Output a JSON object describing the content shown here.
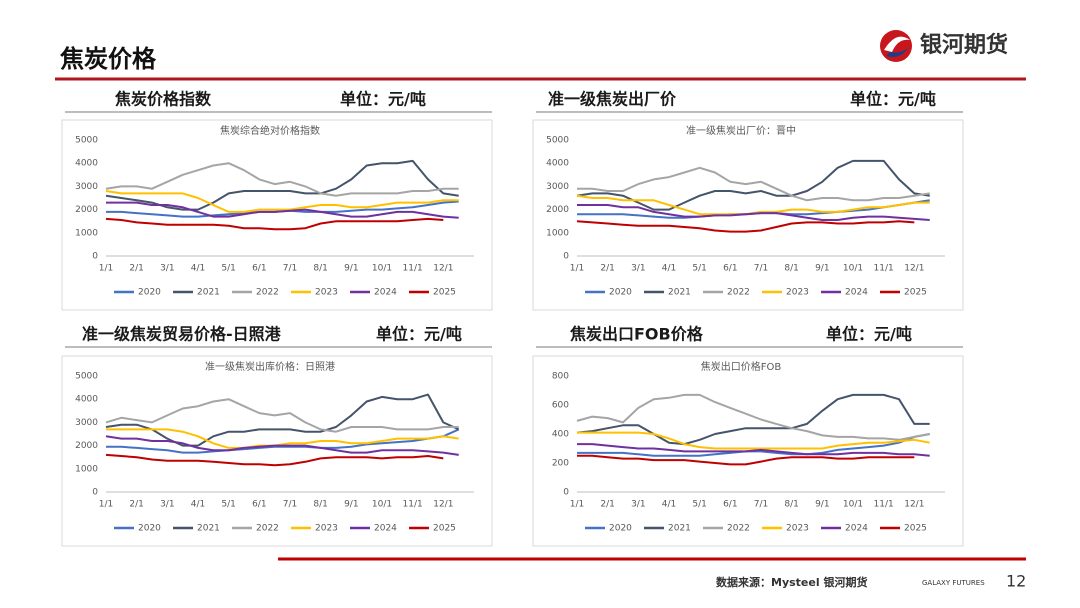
{
  "header": {
    "title": "焦炭价格",
    "logo": "银河期货"
  },
  "panels": [
    {
      "title": "焦炭价格指数",
      "unit": "单位：元/吨"
    },
    {
      "title": "准一级焦炭出厂价",
      "unit": "单位：元/吨"
    },
    {
      "title": "准一级焦炭贸易价格-日照港",
      "unit": "单位：元/吨"
    },
    {
      "title": "焦炭出口FOB价格",
      "unit": "单位：元/吨"
    }
  ],
  "chart_data": [
    {
      "type": "line",
      "title": "焦炭综合绝对价格指数",
      "grid": false,
      "categories": [
        "1/1",
        null,
        "2/1",
        null,
        "3/1",
        null,
        "4/1",
        null,
        "5/1",
        null,
        "6/1",
        null,
        "7/1",
        null,
        "8/1",
        null,
        "9/1",
        null,
        "10/1",
        null,
        "11/1",
        null,
        "12/1",
        null
      ],
      "ylim": [
        0,
        5000
      ],
      "yticks": [
        0,
        1000,
        2000,
        3000,
        4000,
        5000
      ],
      "series": [
        {
          "name": "2020",
          "color": "#4472c4",
          "values": [
            1900,
            1900,
            1850,
            1800,
            1750,
            1700,
            1700,
            1750,
            1800,
            1850,
            1900,
            1900,
            1950,
            1900,
            1900,
            1900,
            1950,
            2000,
            2000,
            2050,
            2100,
            2200,
            2300,
            2350
          ]
        },
        {
          "name": "2021",
          "color": "#44546a",
          "values": [
            2600,
            2500,
            2400,
            2300,
            2100,
            2000,
            2000,
            2300,
            2700,
            2800,
            2800,
            2800,
            2800,
            2700,
            2700,
            2900,
            3300,
            3900,
            4000,
            4000,
            4100,
            3300,
            2700,
            2600
          ]
        },
        {
          "name": "2022",
          "color": "#a5a5a5",
          "values": [
            2900,
            3000,
            3000,
            2900,
            3200,
            3500,
            3700,
            3900,
            4000,
            3700,
            3300,
            3100,
            3200,
            3000,
            2700,
            2600,
            2700,
            2700,
            2700,
            2700,
            2800,
            2800,
            2900,
            2900
          ]
        },
        {
          "name": "2023",
          "color": "#ffc000",
          "values": [
            2800,
            2700,
            2700,
            2700,
            2700,
            2700,
            2500,
            2200,
            1900,
            1900,
            2000,
            2000,
            2000,
            2100,
            2200,
            2200,
            2100,
            2100,
            2200,
            2300,
            2300,
            2300,
            2400,
            2400
          ]
        },
        {
          "name": "2024",
          "color": "#7030a0",
          "values": [
            2300,
            2300,
            2300,
            2200,
            2200,
            2100,
            1900,
            1700,
            1700,
            1800,
            1900,
            1900,
            1950,
            2000,
            1900,
            1800,
            1700,
            1700,
            1800,
            1900,
            1900,
            1800,
            1700,
            1650
          ]
        },
        {
          "name": "2025",
          "color": "#c00000",
          "values": [
            1600,
            1550,
            1450,
            1400,
            1350,
            1350,
            1350,
            1350,
            1300,
            1200,
            1200,
            1150,
            1150,
            1200,
            1400,
            1500,
            1500,
            1500,
            1500,
            1500,
            1550,
            1600,
            1550,
            null
          ]
        }
      ]
    },
    {
      "type": "line",
      "title": "准一级焦炭出厂价：晋中",
      "grid": false,
      "categories": [
        "1/1",
        null,
        "2/1",
        null,
        "3/1",
        null,
        "4/1",
        null,
        "5/1",
        null,
        "6/1",
        null,
        "7/1",
        null,
        "8/1",
        null,
        "9/1",
        null,
        "10/1",
        null,
        "11/1",
        null,
        "12/1",
        null
      ],
      "ylim": [
        0,
        5000
      ],
      "yticks": [
        0,
        1000,
        2000,
        3000,
        4000,
        5000
      ],
      "series": [
        {
          "name": "2020",
          "color": "#4472c4",
          "values": [
            1800,
            1800,
            1800,
            1800,
            1750,
            1700,
            1650,
            1650,
            1700,
            1750,
            1800,
            1800,
            1850,
            1850,
            1800,
            1800,
            1850,
            1900,
            1950,
            2000,
            2100,
            2200,
            2300,
            2400
          ]
        },
        {
          "name": "2021",
          "color": "#44546a",
          "values": [
            2600,
            2700,
            2700,
            2600,
            2300,
            2000,
            2000,
            2300,
            2600,
            2800,
            2800,
            2700,
            2800,
            2600,
            2600,
            2800,
            3200,
            3800,
            4100,
            4100,
            4100,
            3300,
            2700,
            2600
          ]
        },
        {
          "name": "2022",
          "color": "#a5a5a5",
          "values": [
            2900,
            2900,
            2800,
            2800,
            3100,
            3300,
            3400,
            3600,
            3800,
            3600,
            3200,
            3100,
            3200,
            2900,
            2600,
            2400,
            2500,
            2500,
            2400,
            2400,
            2500,
            2500,
            2600,
            2700
          ]
        },
        {
          "name": "2023",
          "color": "#ffc000",
          "values": [
            2600,
            2500,
            2500,
            2400,
            2400,
            2400,
            2200,
            2000,
            1800,
            1800,
            1800,
            1800,
            1900,
            1900,
            2000,
            2000,
            1900,
            1900,
            2000,
            2100,
            2100,
            2200,
            2300,
            2300
          ]
        },
        {
          "name": "2024",
          "color": "#7030a0",
          "values": [
            2200,
            2200,
            2200,
            2100,
            2100,
            1900,
            1800,
            1700,
            1700,
            1750,
            1750,
            1800,
            1850,
            1850,
            1750,
            1650,
            1550,
            1550,
            1650,
            1700,
            1700,
            1650,
            1600,
            1550
          ]
        },
        {
          "name": "2025",
          "color": "#c00000",
          "values": [
            1500,
            1450,
            1400,
            1350,
            1300,
            1300,
            1300,
            1250,
            1200,
            1100,
            1050,
            1050,
            1100,
            1250,
            1400,
            1450,
            1450,
            1400,
            1400,
            1450,
            1450,
            1500,
            1450,
            null
          ]
        }
      ]
    },
    {
      "type": "line",
      "title": "准一级焦炭出库价格：日照港",
      "grid": false,
      "categories": [
        "1/1",
        null,
        "2/1",
        null,
        "3/1",
        null,
        "4/1",
        null,
        "5/1",
        null,
        "6/1",
        null,
        "7/1",
        null,
        "8/1",
        null,
        "9/1",
        null,
        "10/1",
        null,
        "11/1",
        null,
        "12/1",
        null
      ],
      "ylim": [
        0,
        5000
      ],
      "yticks": [
        0,
        1000,
        2000,
        3000,
        4000,
        5000
      ],
      "series": [
        {
          "name": "2020",
          "color": "#4472c4",
          "values": [
            1950,
            1950,
            1900,
            1850,
            1800,
            1700,
            1700,
            1750,
            1800,
            1850,
            1900,
            1950,
            1950,
            1950,
            1900,
            1900,
            1950,
            2050,
            2100,
            2150,
            2200,
            2300,
            2400,
            2700
          ]
        },
        {
          "name": "2021",
          "color": "#44546a",
          "values": [
            2800,
            2900,
            2900,
            2700,
            2300,
            2000,
            2000,
            2400,
            2600,
            2600,
            2700,
            2700,
            2700,
            2600,
            2600,
            2800,
            3300,
            3900,
            4100,
            4000,
            4000,
            4200,
            3000,
            2700
          ]
        },
        {
          "name": "2022",
          "color": "#a5a5a5",
          "values": [
            3000,
            3200,
            3100,
            3000,
            3300,
            3600,
            3700,
            3900,
            4000,
            3700,
            3400,
            3300,
            3400,
            3000,
            2700,
            2600,
            2800,
            2800,
            2800,
            2700,
            2700,
            2700,
            2800,
            2800
          ]
        },
        {
          "name": "2023",
          "color": "#ffc000",
          "values": [
            2700,
            2700,
            2700,
            2700,
            2700,
            2600,
            2400,
            2100,
            1900,
            1900,
            2000,
            2000,
            2100,
            2100,
            2200,
            2200,
            2100,
            2100,
            2200,
            2300,
            2300,
            2300,
            2400,
            2300
          ]
        },
        {
          "name": "2024",
          "color": "#7030a0",
          "values": [
            2400,
            2300,
            2300,
            2200,
            2200,
            2100,
            1900,
            1800,
            1800,
            1900,
            1950,
            2000,
            2000,
            2000,
            1900,
            1800,
            1700,
            1700,
            1800,
            1800,
            1800,
            1750,
            1700,
            1600
          ]
        },
        {
          "name": "2025",
          "color": "#c00000",
          "values": [
            1600,
            1550,
            1500,
            1400,
            1350,
            1350,
            1350,
            1300,
            1250,
            1200,
            1200,
            1150,
            1200,
            1300,
            1450,
            1500,
            1500,
            1500,
            1450,
            1500,
            1500,
            1550,
            1450,
            null
          ]
        }
      ]
    },
    {
      "type": "line",
      "title": "焦炭出口价格FOB",
      "grid": false,
      "categories": [
        "1/1",
        null,
        "2/1",
        null,
        "3/1",
        null,
        "4/1",
        null,
        "5/1",
        null,
        "6/1",
        null,
        "7/1",
        null,
        "8/1",
        null,
        "9/1",
        null,
        "10/1",
        null,
        "11/1",
        null,
        "12/1",
        null
      ],
      "ylim": [
        0,
        800
      ],
      "yticks": [
        0,
        200,
        400,
        600,
        800
      ],
      "series": [
        {
          "name": "2020",
          "color": "#4472c4",
          "values": [
            270,
            270,
            270,
            270,
            260,
            250,
            250,
            250,
            250,
            260,
            270,
            280,
            280,
            270,
            260,
            260,
            270,
            290,
            300,
            310,
            320,
            340,
            380,
            400
          ]
        },
        {
          "name": "2021",
          "color": "#44546a",
          "values": [
            410,
            420,
            440,
            460,
            460,
            400,
            340,
            330,
            360,
            400,
            420,
            440,
            440,
            440,
            440,
            470,
            560,
            640,
            670,
            670,
            670,
            640,
            470,
            470
          ]
        },
        {
          "name": "2022",
          "color": "#a5a5a5",
          "values": [
            490,
            520,
            510,
            480,
            580,
            640,
            650,
            670,
            670,
            620,
            580,
            540,
            500,
            470,
            440,
            420,
            390,
            380,
            380,
            370,
            370,
            360,
            380,
            400
          ]
        },
        {
          "name": "2023",
          "color": "#ffc000",
          "values": [
            410,
            410,
            410,
            410,
            410,
            400,
            370,
            330,
            310,
            300,
            300,
            300,
            300,
            300,
            300,
            300,
            300,
            320,
            330,
            340,
            340,
            350,
            360,
            340
          ]
        },
        {
          "name": "2024",
          "color": "#7030a0",
          "values": [
            330,
            330,
            320,
            310,
            300,
            300,
            290,
            280,
            280,
            280,
            280,
            280,
            290,
            280,
            270,
            260,
            260,
            260,
            270,
            270,
            270,
            260,
            260,
            250
          ]
        },
        {
          "name": "2025",
          "color": "#c00000",
          "values": [
            250,
            250,
            240,
            230,
            230,
            220,
            220,
            220,
            210,
            200,
            190,
            190,
            210,
            230,
            240,
            240,
            240,
            230,
            230,
            240,
            240,
            240,
            240,
            null
          ]
        }
      ]
    }
  ],
  "footer": {
    "source": "数据来源：Mysteel 银河期货",
    "brand": "GALAXY FUTURES",
    "page": "12"
  }
}
